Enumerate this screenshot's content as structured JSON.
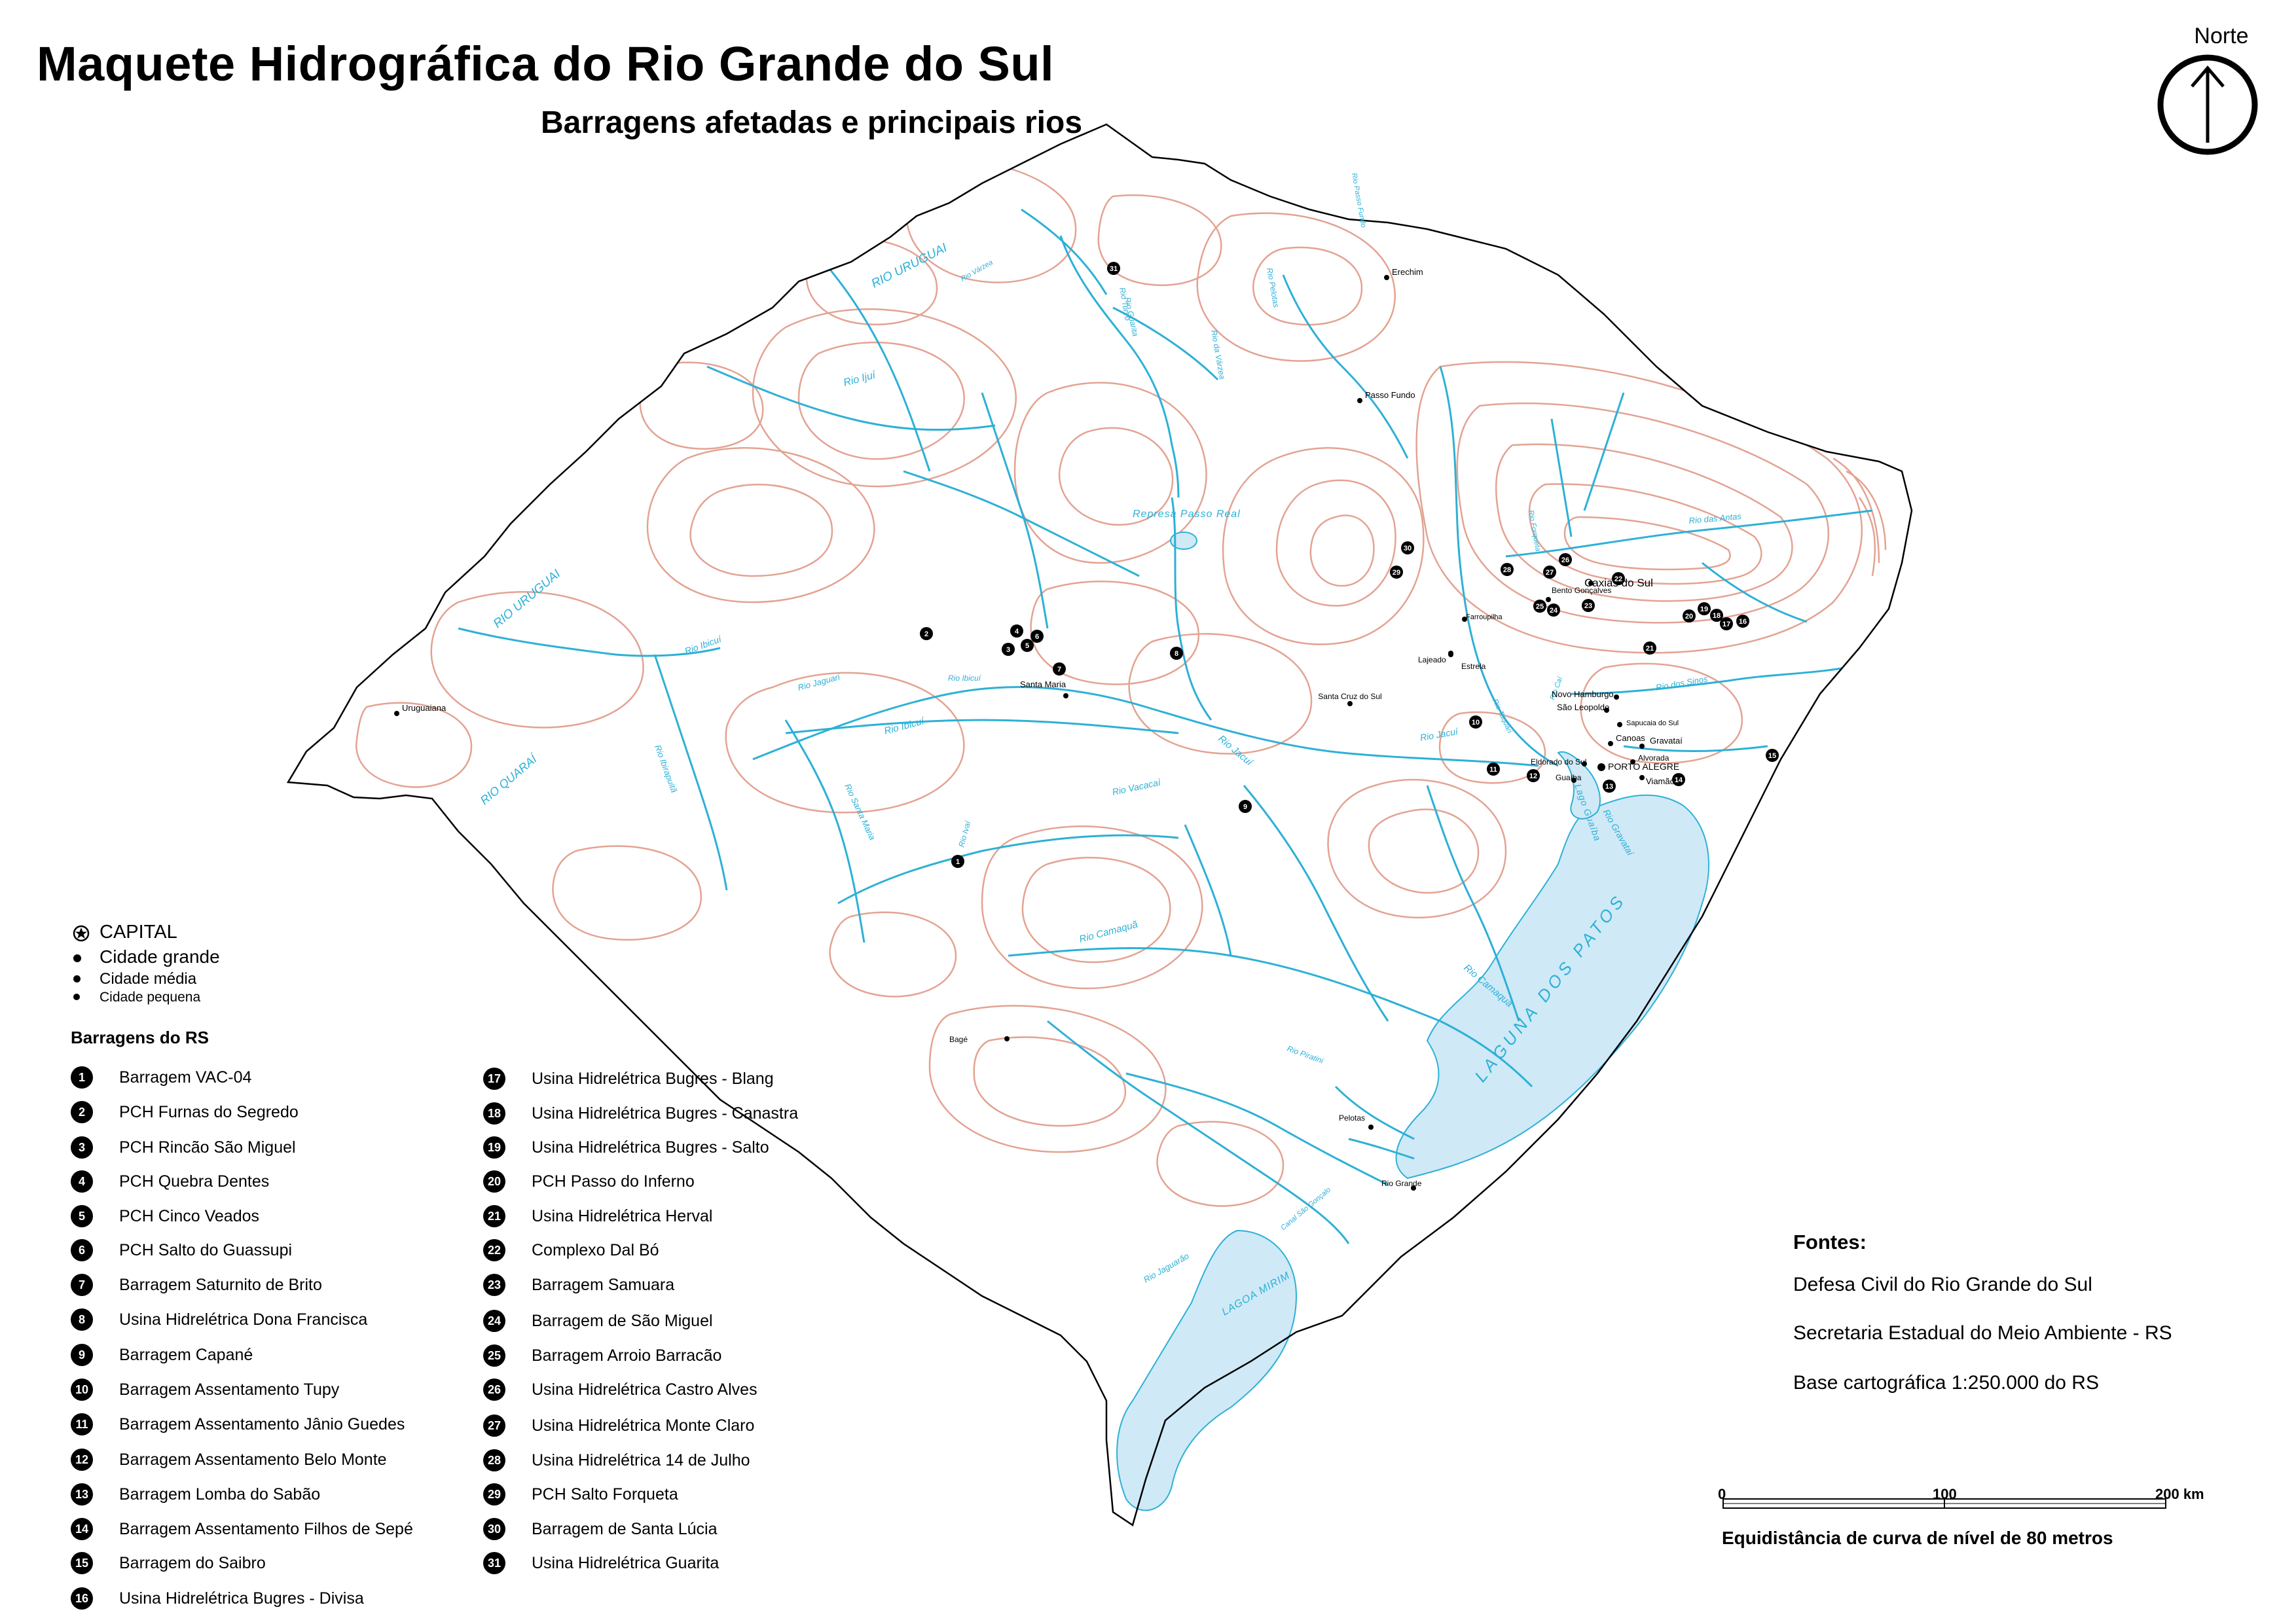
{
  "title": "Maquete Hidrográfica do Rio Grande do Sul",
  "subtitle": "Barragens afetadas e principais rios",
  "north_label": "Norte",
  "colors": {
    "river": "#2db0d6",
    "water": "#cfe9f7",
    "contour": "#e3a392",
    "border": "#000000"
  },
  "legend": {
    "capital": "CAPITAL",
    "cidade_grande": "Cidade grande",
    "cidade_media": "Cidade média",
    "cidade_pequena": "Cidade pequena",
    "dams_heading": "Barragens do RS"
  },
  "dams": [
    {
      "n": "1",
      "name": "Barragem VAC-04"
    },
    {
      "n": "2",
      "name": "PCH Furnas do Segredo"
    },
    {
      "n": "3",
      "name": "PCH Rincão São Miguel"
    },
    {
      "n": "4",
      "name": "PCH Quebra Dentes"
    },
    {
      "n": "5",
      "name": "PCH Cinco Veados"
    },
    {
      "n": "6",
      "name": "PCH Salto do Guassupi"
    },
    {
      "n": "7",
      "name": "Barragem Saturnito de Brito"
    },
    {
      "n": "8",
      "name": "Usina Hidrelétrica Dona Francisca"
    },
    {
      "n": "9",
      "name": "Barragem Capané"
    },
    {
      "n": "10",
      "name": "Barragem Assentamento Tupy"
    },
    {
      "n": "11",
      "name": "Barragem Assentamento Jânio Guedes"
    },
    {
      "n": "12",
      "name": "Barragem Assentamento Belo Monte"
    },
    {
      "n": "13",
      "name": "Barragem Lomba do Sabão"
    },
    {
      "n": "14",
      "name": "Barragem Assentamento Filhos de Sepé"
    },
    {
      "n": "15",
      "name": "Barragem do Saibro"
    },
    {
      "n": "16",
      "name": "Usina Hidrelétrica Bugres - Divisa"
    },
    {
      "n": "17",
      "name": "Usina Hidrelétrica Bugres - Blang"
    },
    {
      "n": "18",
      "name": "Usina Hidrelétrica Bugres - Canastra"
    },
    {
      "n": "19",
      "name": "Usina Hidrelétrica Bugres - Salto"
    },
    {
      "n": "20",
      "name": "PCH Passo do Inferno"
    },
    {
      "n": "21",
      "name": "Usina Hidrelétrica Herval"
    },
    {
      "n": "22",
      "name": "Complexo Dal Bó"
    },
    {
      "n": "23",
      "name": "Barragem Samuara"
    },
    {
      "n": "24",
      "name": "Barragem de São Miguel"
    },
    {
      "n": "25",
      "name": "Barragem Arroio Barracão"
    },
    {
      "n": "26",
      "name": "Usina Hidrelétrica Castro Alves"
    },
    {
      "n": "27",
      "name": "Usina Hidrelétrica Monte Claro"
    },
    {
      "n": "28",
      "name": "Usina Hidrelétrica 14 de Julho"
    },
    {
      "n": "29",
      "name": "PCH Salto Forqueta"
    },
    {
      "n": "30",
      "name": "Barragem de Santa Lúcia"
    },
    {
      "n": "31",
      "name": "Usina Hidrelétrica Guarita"
    }
  ],
  "sources": {
    "heading": "Fontes:",
    "items": [
      "Defesa Civil do Rio Grande do Sul",
      "Secretaria Estadual do Meio Ambiente - RS",
      "Base cartográfica 1:250.000 do RS"
    ]
  },
  "scale": {
    "labels": [
      "0",
      "100",
      "200 km"
    ],
    "equidistance": "Equidistância de curva de nível de 80 metros"
  },
  "map_labels": {
    "cities": [
      "Erechim",
      "Passo Fundo",
      "Santa Maria",
      "Uruguaiana",
      "Santa Cruz do Sul",
      "Lajeado",
      "Estrela",
      "Bento Gonçalves",
      "Caxias do Sul",
      "Novo Hamburgo",
      "São Leopoldo",
      "Sapucaia do Sul",
      "Canoas",
      "Gravataí",
      "Eldorado do Sul",
      "Guaíba",
      "PORTO ALEGRE",
      "Alvorada",
      "Viamão",
      "Bagé",
      "Pelotas",
      "Rio Grande",
      "Farroupilha"
    ],
    "rivers": [
      "RIO URUGUAI",
      "RIO URUGUAI",
      "Rio Ijuí",
      "Rio Ibicuí",
      "Rio Ibicuí",
      "Rio Jaguari",
      "Rio Ibirapuitã",
      "Rio Ibicuí",
      "RIO QUARAÍ",
      "Rio Santa Maria",
      "Rio Vacacaí",
      "Rio Jacuí",
      "Rio Jacuí",
      "Rio Camaquã",
      "Rio Camaquã",
      "Rio dos Sinos",
      "Rio das Antas",
      "Rio Jaguarão",
      "Rio Turvo",
      "Rio Guarita",
      "Rio Pelotas",
      "Rio Ivaí",
      "Rio Taquari",
      "Rio Caí",
      "Rio Gravataí",
      "Canal São Gonçalo",
      "Rio Piratini",
      "Rio Várzea",
      "Rio da Várzea",
      "Rio Passo Fundo",
      "Rio Forqueta"
    ],
    "lakes": [
      "Represa Passo Real",
      "LAGUNA DOS PATOS",
      "LAGOA MIRIM",
      "Lago Guaíba"
    ]
  }
}
